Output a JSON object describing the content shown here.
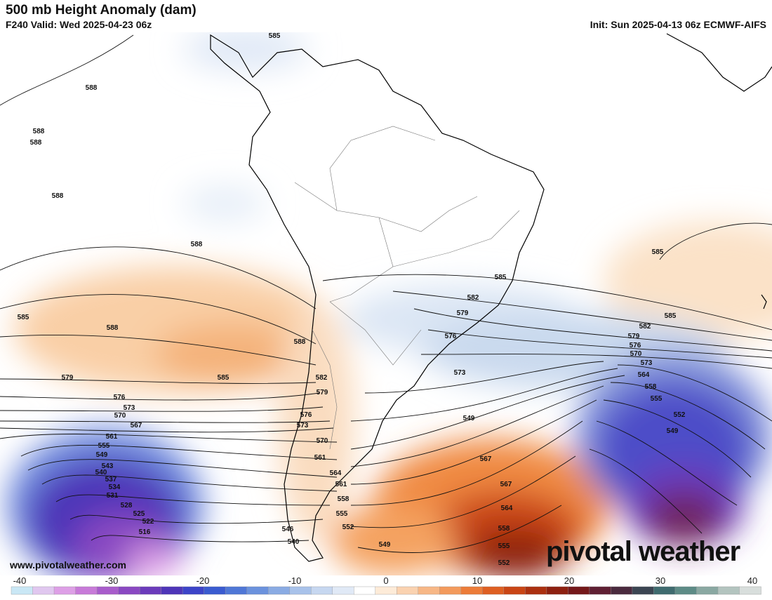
{
  "header": {
    "title": "500 mb Height Anomaly (dam)",
    "subtitle": "F240 Valid: Wed 2025-04-23 06z",
    "init": "Init: Sun 2025-04-13 06z ECMWF-AIFS"
  },
  "branding": {
    "watermark": "pivotal weather",
    "url": "www.pivotalweather.com"
  },
  "colorbar": {
    "ticks": [
      "-40",
      "-30",
      "-20",
      "-10",
      "0",
      "10",
      "20",
      "30",
      "40"
    ],
    "colors": [
      "#c9e7f5",
      "#e0c7ef",
      "#dd9fe6",
      "#c77ad8",
      "#a85ccb",
      "#8a48c2",
      "#6b3bbb",
      "#4e35b8",
      "#3c44c8",
      "#3a5bd0",
      "#4f77d6",
      "#6b92dd",
      "#8aabe3",
      "#a8c2ea",
      "#c6d7f0",
      "#e0e9f6",
      "#ffffff",
      "#fdebd8",
      "#fad2b0",
      "#f7b786",
      "#f39a5c",
      "#ec7c39",
      "#de5f22",
      "#c94515",
      "#ab3010",
      "#8d2010",
      "#74181a",
      "#5f1f33",
      "#4a2a3e",
      "#3b4552",
      "#3f6b6f",
      "#5d8b86",
      "#8aa8a2",
      "#b3c4bf",
      "#d8dedc"
    ]
  },
  "contour_labels": [
    "585",
    "588",
    "588",
    "588",
    "588",
    "588",
    "585",
    "588",
    "585",
    "579",
    "588",
    "585",
    "582",
    "579",
    "585",
    "582",
    "576",
    "579",
    "573",
    "576",
    "585",
    "582",
    "579",
    "576",
    "573",
    "570",
    "570",
    "576",
    "573",
    "573",
    "570",
    "567",
    "564",
    "558",
    "555",
    "567",
    "561",
    "552",
    "549",
    "567",
    "564",
    "561",
    "564",
    "558",
    "555",
    "561",
    "555",
    "558",
    "549",
    "552",
    "546",
    "540",
    "543",
    "540",
    "537",
    "534",
    "531",
    "528",
    "525",
    "522",
    "516",
    "555",
    "549",
    "552",
    "549"
  ]
}
